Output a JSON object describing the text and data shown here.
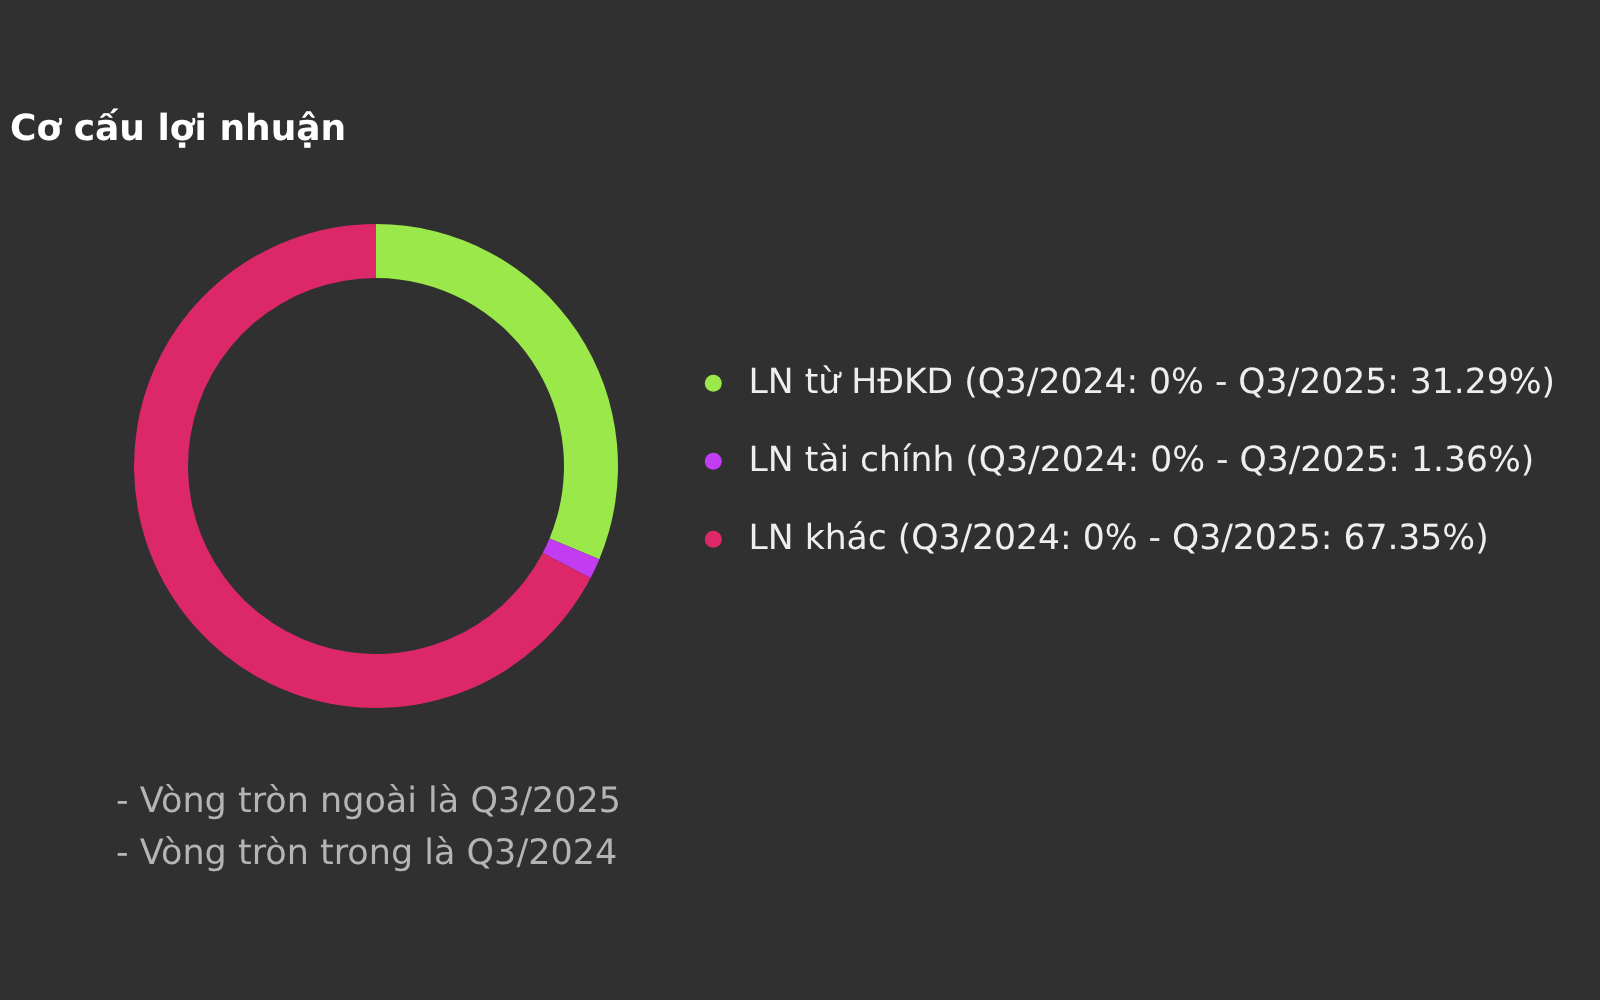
{
  "chart_data": {
    "type": "donut",
    "title": "Cơ cấu lợi nhuận",
    "categories": [
      "LN từ HĐKD (Q3/2024: 0% - Q3/2025: 31.29%)",
      "LN tài chính (Q3/2024: 0% - Q3/2025: 1.36%)",
      "LN khác (Q3/2024: 0% - Q3/2025: 67.35%)"
    ],
    "values": [
      31.29,
      1.36,
      67.35
    ],
    "colors": [
      "#9be84a",
      "#c23cf2",
      "#dc2868"
    ],
    "legend": "right",
    "annotations": [
      "- Vòng tròn ngoài là Q3/2025",
      "- Vòng tròn trong là Q3/2024"
    ]
  }
}
